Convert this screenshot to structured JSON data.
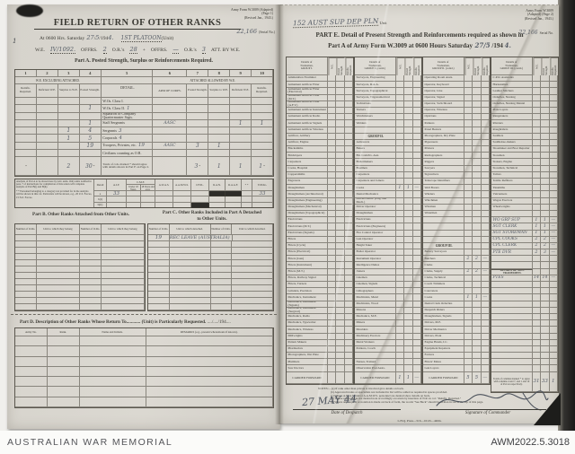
{
  "archive": {
    "label": "AUSTRALIAN WAR MEMORIAL",
    "id": "AWM2022.5.3018"
  },
  "page1": {
    "form_ref": [
      "Army Form W.3009 (Adapted)",
      "(Page 1)",
      "(Revised Jan., 1943.)"
    ],
    "serial_hw": "22,166",
    "serial_label": "(Serial No.)",
    "margin_mark": "1",
    "title": "FIELD RETURN OF OTHER RANKS",
    "datetime": {
      "prefix": "At 0600 Hrs. Saturday",
      "day": "27",
      "month": "5",
      "year_printed": "/194",
      "year_hw": "4.",
      "unit_hw": "1ST PLATOON",
      "unit_label": "(Unit)"
    },
    "we_line": {
      "we": "W.E.",
      "we_hw": "IV/1092.",
      "offrs": "OFFRS.",
      "offrs_hw": "2",
      "ors": "O.R.'s",
      "ors_hw": "28",
      "plus": "+",
      "offrs2": "OFFRS.",
      "offrs2_hw": "—",
      "ors2": "O.R.'s",
      "ors2_hw": "3",
      "att": "ATT. BY W.E."
    },
    "part_a": {
      "caption": "Part A.  Posted Strength, Surplus or Reinforcements Required.",
      "col_numbers": [
        "1",
        "2",
        "3",
        "4",
        "5",
        "6",
        "7",
        "8",
        "9",
        "10"
      ],
      "group_left": "W.E. EXCLUDING ATTACHED.",
      "detail_header": "DETAIL.",
      "group_right": "ATTACHED ALLOWED BY W.E.",
      "sub_left": [
        "Reinfts. Required.",
        "Deficient W.E.",
        "Surplus to W.E.",
        "Posted Strength."
      ],
      "arm_header": "ARM OF CORPS.",
      "sub_right": [
        "Posted Strength.",
        "Surplus to W.E.",
        "Deficient W.E.",
        "Reinfts. Required."
      ],
      "rows": [
        {
          "detail": "W.Os. Class I."
        },
        {
          "detail": "W.Os. Class II.",
          "c4": "1",
          "hw": "1"
        },
        {
          "detail": "Squadron or Company Quartermaster Srgts."
        },
        {
          "detail": "Staff Sergeants",
          "c4": "1",
          "arm": "AASC",
          "c9": "1",
          "c10": "1"
        },
        {
          "detail": "Sergeants",
          "c3": "1",
          "c4": "4",
          "hw": "3"
        },
        {
          "detail": "Corporals",
          "c3": "1",
          "c4": "5",
          "hw": "4"
        },
        {
          "detail": "Troopers, Privates, etc.",
          "c4": "19",
          "hw": "19",
          "arm": "AASC",
          "c7": "3",
          "c8": "1"
        },
        {
          "detail": "Civilians counting as O.R."
        },
        {
          "detail": "Totals of cols. marked * should agree with details shown in Part E on Page 2.",
          "c3": "2",
          "c4": "30",
          "c7": "3",
          "c8": "1",
          "c9": "1",
          "c10": "1",
          "totals": true
        }
      ]
    },
    "analysis": {
      "note1": "Analysis of Part A to be shown here by ALL units.  Only units notified in para. 7 of instructions for compilation of this return will complete analysis of Part B(i) and B(ii).",
      "note2": "* * Personnel belonging to a category not provided for in the analysis will be shown in this col.  Particulars will be shown, e.g., 20 U.S. Forces, 15 N.Z. Forces.",
      "detail_col": "Detail",
      "cmf": "C.M.F.",
      "cmf_sub": [
        "Under 18 Years.",
        "18 Years and over."
      ],
      "col_aif": "A.I.F.",
      "col_awas": "A.W.A.S.",
      "col_aamws": "A.A.M.W.S.",
      "col_civil": "CIVIL.",
      "col_ran": "R.A.N.",
      "col_raaf": "R.A.A.F.",
      "col_ss": "* *",
      "col_total": "TOTAL.",
      "rows": [
        {
          "label": "a",
          "aif": "33",
          "total": "33",
          "ran_black": true,
          "raaf_black": true
        },
        {
          "label": "b(i)"
        },
        {
          "label": "b(ii)",
          "civil_black": true
        }
      ]
    },
    "part_b": {
      "title": "Part B.  Other Ranks Attached from Other Units.",
      "col_num": "Number of O.Rs.",
      "col_unit": "Unit to which they belong",
      "empty_rows": 12
    },
    "part_c": {
      "title1": "Part C.  Other Ranks Included in Part A Detached",
      "title2": "to Other Units.",
      "col_num": "Number of O.Rs.",
      "col_unit": "Unit to which detached.",
      "row1_num": "19",
      "row1_unit": "REC LEAVE (AUSTRALIA)",
      "empty_rows": 11
    },
    "part_d": {
      "title": "Part D.  Description of Other Ranks Whose Return To",
      "title_dots": "............",
      "title_end": "(Unit) is Particularly Requested.",
      "title_date": "..../..../194....",
      "headers": [
        "Army No.",
        "Rank.",
        "Name and Initials.",
        "REMARKS (e.g., present whereabouts if known)."
      ],
      "empty_rows": 7
    }
  },
  "page2": {
    "unit_hw": "152 AUST SUP DEP PLN",
    "unit_label": "Unit",
    "form_ref": [
      "Army Form W.3009",
      "(Adapted)  (Page 2)",
      "(Revised Jan., 1943.)"
    ],
    "serial_hw": "22,166",
    "serial_label": "Serial No.",
    "title1": "PART E.  Detail of Present Strength and Reinforcements required as shown in",
    "title2": "Part A of Army Form W.3009 at 0600 Hours Saturday",
    "title_date_hw": "27/5",
    "title_year": "/194",
    "title_year_hw": "4.",
    "hdr": {
      "we": "W.E.",
      "posted": "Posted Strength.",
      "reinfts": "Reinfts. Required."
    },
    "group_titles": [
      [
        "Details of",
        "Tradesmen,",
        "GROUP I."
      ],
      [
        "Details of",
        "Tradesmen,",
        "GROUP I. (contd.)"
      ],
      [
        "Details of",
        "Tradesmen,",
        "GROUP II. (contd.)"
      ],
      [
        "Details of",
        "Tradesmen,",
        "GROUP III. (contd.)"
      ]
    ],
    "columns": [
      [
        {
          "t": "Ammunition Examiner"
        },
        {
          "t": "Armament Artificer Fitter"
        },
        {
          "t": "Armament Artificer Fitter (Electrical)"
        },
        {
          "t": "Armament Artificer Fitter (M.T.)"
        },
        {
          "t": "Armament Artificer Fitter (A.F.V.)"
        },
        {
          "t": "Armament Artificer Instrument"
        },
        {
          "t": "Armament Artificer Radio"
        },
        {
          "t": "Armament Artificer Signals"
        },
        {
          "t": "Armament Artificer Wireless"
        },
        {
          "t": "Artificer, Artillery"
        },
        {
          "t": "Artificer, Engine"
        },
        {
          "t": "Blacksmiths"
        },
        {
          "t": "Bricklayers"
        },
        {
          "t": "Carpenters"
        },
        {
          "t": "Cooks, Hospital"
        },
        {
          "t": "Coppersmiths"
        },
        {
          "t": "Engravers"
        },
        {
          "t": "Draughtsmen"
        },
        {
          "t": "Draughtsmen (Architectural)"
        },
        {
          "t": "Draughtsmen (Engineering)"
        },
        {
          "t": "Draughtsmen (Mechanical)"
        },
        {
          "t": "Draughtsmen (Topographical)"
        },
        {
          "t": "Electricians"
        },
        {
          "t": "Electricians (M.T.)"
        },
        {
          "t": "Electricians (Signals)"
        },
        {
          "t": "Fitters"
        },
        {
          "t": "Fitters (Cycle)"
        },
        {
          "t": "Fitters (Electrical)"
        },
        {
          "t": "Fitters (Gun)"
        },
        {
          "t": "Fitters (Instrument)"
        },
        {
          "t": "Fitters (M.T.)"
        },
        {
          "t": "Fitters, Railway Signal"
        },
        {
          "t": "Fitters, Turners"
        },
        {
          "t": "Grinders, Precision"
        },
        {
          "t": "Mechanics, Instrument"
        },
        {
          "t": "Mechanics, Instrument (Signals)"
        },
        {
          "t": "Mechanics, Instrument (Surgical)"
        },
        {
          "t": "Mechanics, Radio"
        },
        {
          "t": "Mechanics, Typewriter"
        },
        {
          "t": "Mechanics, Wireless"
        },
        {
          "t": "Millwrights"
        },
        {
          "t": "Pattern Makers"
        },
        {
          "t": "Pharmacists"
        },
        {
          "t": "Photographers, Wet Plate"
        },
        {
          "t": "Plumbers"
        },
        {
          "t": "Saw Doctors"
        }
      ],
      [
        {
          "t": "Surveyors, Engineering"
        },
        {
          "t": "Surveyors, R.A.A."
        },
        {
          "t": "Surveyors, Topographical"
        },
        {
          "t": "Surveyors, Trigonometrical"
        },
        {
          "t": "Technicians"
        },
        {
          "t": "Turners"
        },
        {
          "t": "Watchmakers"
        },
        {
          "t": "Welders"
        },
        {
          "t": ""
        },
        {
          "h": "GROUP II."
        },
        {
          "t": "Armourers"
        },
        {
          "t": "Bakers"
        },
        {
          "t": "Btr. Comd'rs. Asst."
        },
        {
          "t": "Boilermakers"
        },
        {
          "t": "Boatmen"
        },
        {
          "t": "Carpenters"
        },
        {
          "t": "Carpenters and Joiners"
        },
        {
          "t": "Cooks",
          "w": "1",
          "p": "1",
          "r": "—"
        },
        {
          "t": "Dental Mechanics"
        },
        {
          "t": "Drivers Mech. (Eng. and Mech.)"
        },
        {
          "t": "Driver Operator"
        },
        {
          "t": "Draughtsmen"
        },
        {
          "t": "Electricians"
        },
        {
          "t": "Electricians (Engineers)"
        },
        {
          "t": "Fire Control Operator"
        },
        {
          "t": "Gun Operator"
        },
        {
          "t": "Height Taker"
        },
        {
          "t": "Boiler Operator"
        },
        {
          "t": "Instrument Operator"
        },
        {
          "t": "Intelligence Duties"
        },
        {
          "t": "Joiners"
        },
        {
          "t": "Linemen"
        },
        {
          "t": "Linemen, Signals"
        },
        {
          "t": "Lithographers"
        },
        {
          "t": "Machinists, Metal"
        },
        {
          "t": "Machinists, Wood"
        },
        {
          "t": "Masons"
        },
        {
          "t": "Mechanics, M.E."
        },
        {
          "t": "Miners"
        },
        {
          "t": "Moulders"
        },
        {
          "t": "Machinery Erectors"
        },
        {
          "t": "Metal Workers"
        },
        {
          "t": "Painters, Coach"
        },
        {
          "t": ""
        },
        {
          "t": "Nurses, Trained"
        },
        {
          "t": "Observation Post Assts."
        }
      ],
      [
        {
          "t": "Operating Room Assts."
        },
        {
          "t": "Operator, Keyboard"
        },
        {
          "t": "Operator, Line"
        },
        {
          "t": "Operator, Signal"
        },
        {
          "t": "Operator, Switchboard"
        },
        {
          "t": "Operator, Wireless"
        },
        {
          "t": "Opticians"
        },
        {
          "t": "Painters"
        },
        {
          "t": "Panel Beaters"
        },
        {
          "t": "Photographers, Dry Plate"
        },
        {
          "t": "Pigeoneers"
        },
        {
          "t": "Printers"
        },
        {
          "t": "Radiographers"
        },
        {
          "t": "Riggers"
        },
        {
          "t": "Sawyers"
        },
        {
          "t": "Signwriters"
        },
        {
          "t": "Telescope Identifiers"
        },
        {
          "t": "Well Borers"
        },
        {
          "t": "Winders"
        },
        {
          "t": "Winchmen"
        },
        {
          "t": "Wiremen"
        },
        {
          "t": "Watermen"
        },
        {
          "t": ""
        },
        {
          "t": ""
        },
        {
          "t": ""
        },
        {
          "t": ""
        },
        {
          "h": "GROUP III."
        },
        {
          "t": "Battery Surveyors"
        },
        {
          "t": "Butchers",
          "w": "2",
          "p": "2",
          "r": "—"
        },
        {
          "t": "Clerks"
        },
        {
          "t": "Clerks, Supply",
          "w": "2",
          "p": "2",
          "r": "—"
        },
        {
          "t": "Clerks, Technical"
        },
        {
          "t": "Coach Trimmers"
        },
        {
          "t": "Concreters"
        },
        {
          "t": "Cooks",
          "w": "1",
          "p": "1",
          "r": "—"
        },
        {
          "t": "Dental Clerk Orderlies"
        },
        {
          "t": "Despatch Riders"
        },
        {
          "t": "Draughtsmen, Signals"
        },
        {
          "t": "Drivers, M.E."
        },
        {
          "t": "Driver Mechanics"
        },
        {
          "t": "Drivers, Plant"
        },
        {
          "t": "Engine Hands, I.C."
        },
        {
          "t": "Equipment Repairers"
        },
        {
          "t": "Farriers"
        },
        {
          "t": "Fitters' Mates"
        },
        {
          "t": "Gun Layers"
        }
      ],
      [
        {
          "t": "C.P.O. Assistants"
        },
        {
          "t": "Harnessmen"
        },
        {
          "t": "Leather Stitchers"
        },
        {
          "t": "Orderlies, Nursing"
        },
        {
          "t": "Orderlies, Nursing Mental"
        },
        {
          "t": "Plate Layers"
        },
        {
          "t": "Rangetakers"
        },
        {
          "t": "Riveters"
        },
        {
          "t": "Roughriders"
        },
        {
          "t": "Saddlers"
        },
        {
          "t": "Saddletree-makers"
        },
        {
          "t": "Shoemaker and Boot Repairer"
        },
        {
          "t": "Storemen"
        },
        {
          "t": "Stokers, Engine"
        },
        {
          "t": "Storemen, Technical"
        },
        {
          "t": "Tailors"
        },
        {
          "t": "Textile Refitters"
        },
        {
          "t": "Tinsmiths"
        },
        {
          "t": "Vulcanisers"
        },
        {
          "t": "Wagon Erectors"
        },
        {
          "t": "Wheelwrights"
        },
        {
          "t": ""
        },
        {
          "hw": "WO GRP SUP",
          "w": "1",
          "p": "1",
          "r": "—"
        },
        {
          "hw": "SGT CLERK",
          "w": "1",
          "p": "1",
          "r": "—"
        },
        {
          "hw": "SGT STOREMAN",
          "w": "1",
          "p": "1",
          "r": "—"
        },
        {
          "hw": "CPL COOKS",
          "w": "2",
          "p": "2",
          "r": "—"
        },
        {
          "hw": "CPL CLERK",
          "w": "2",
          "p": "2",
          "r": "—"
        },
        {
          "hw": "PTE DVR",
          "w": "2",
          "p": "3",
          "r": "—"
        },
        {
          "t": ""
        },
        {
          "t": ""
        },
        {
          "h2": "DETAILS OF NON-TRADESMEN."
        },
        {
          "hw": "PTES",
          "w": "14",
          "p": "14",
          "r": "—"
        },
        {
          "t": ""
        },
        {
          "t": ""
        },
        {
          "t": ""
        },
        {
          "t": ""
        },
        {
          "t": ""
        },
        {
          "t": ""
        },
        {
          "t": ""
        },
        {
          "t": ""
        },
        {
          "t": ""
        },
        {
          "t": ""
        },
        {
          "t": ""
        },
        {
          "t": ""
        },
        {
          "t": ""
        },
        {
          "t": ""
        }
      ]
    ],
    "carried_forward": "CARRIED FORWARD",
    "cf_values": [
      {
        "w": "",
        "p": "",
        "r": ""
      },
      {
        "w": "1",
        "p": "1",
        "r": "—"
      },
      {
        "w": "5",
        "p": "5",
        "r": "—"
      }
    ],
    "totals_note": "Totals of columns marked * to agree with columns 4 and 7, and 1 and 10 of Part A respectively.",
    "totals": {
      "we": "31",
      "posted": "33",
      "reinfts": "1"
    },
    "notes": [
      "NOTES:—(a) If rank other than private is involved give details on back.",
      "(b) Approved trades or specialists not included in list will be added as required in spaces provided.",
      "(c) Where A.W.A.S. and/or A.A.M.W.S. personnel are desired show details on back.",
      "(d) Where replacement not desired note accordingly on return by insertion of N.R. in col. \"Reinfts. Required.\"",
      "(e) Where any request or notation is made on back of form, the words \"See Back\" should be written in red at the top of this page."
    ],
    "despatch_hw": "27 MAY 44",
    "despatch_label": "Date of Despatch",
    "signature_label": "Signature of Commander",
    "imprint": "L.H.Q. Press—516—10/43—440m."
  }
}
